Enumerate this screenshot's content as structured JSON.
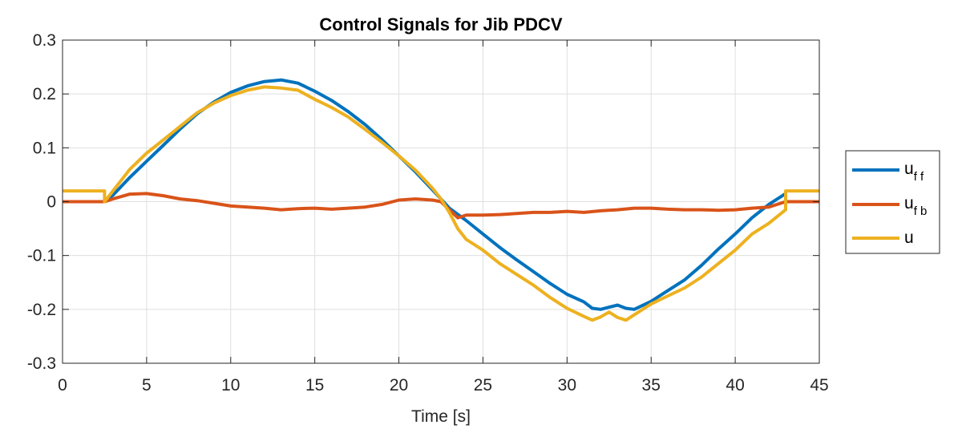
{
  "chart_data": {
    "type": "line",
    "title": "Control Signals for Jib PDCV",
    "xlabel": "Time [s]",
    "ylabel": "",
    "xlim": [
      0,
      45
    ],
    "ylim": [
      -0.3,
      0.3
    ],
    "xticks": [
      0,
      5,
      10,
      15,
      20,
      25,
      30,
      35,
      40,
      45
    ],
    "xtick_labels": [
      "0",
      "5",
      "10",
      "15",
      "20",
      "25",
      "30",
      "35",
      "40",
      "45"
    ],
    "yticks": [
      0.3,
      0.2,
      0.1,
      0,
      -0.1,
      -0.2,
      -0.3
    ],
    "ytick_labels": [
      "0.3",
      "0.2",
      "0.1",
      "0",
      "-0.1",
      "-0.2",
      "-0.3"
    ],
    "grid": true,
    "legend_position": "outside-right",
    "series": [
      {
        "name": "u_ff",
        "legend_main": "u",
        "legend_sub": "f f",
        "color": "#0072BD",
        "x": [
          0,
          2.5,
          2.5,
          3,
          4,
          5,
          6,
          7,
          8,
          9,
          10,
          11,
          12,
          13,
          14,
          15,
          16,
          17,
          18,
          19,
          20,
          21,
          22,
          22.5,
          23,
          24,
          25,
          26,
          27,
          28,
          29,
          30,
          31,
          31.5,
          32,
          32.5,
          33,
          33.5,
          34,
          35,
          36,
          37,
          38,
          39,
          40,
          41,
          42,
          43
        ],
        "y": [
          0,
          0,
          0,
          0.012,
          0.045,
          0.075,
          0.105,
          0.135,
          0.163,
          0.185,
          0.203,
          0.215,
          0.223,
          0.226,
          0.22,
          0.205,
          0.188,
          0.167,
          0.143,
          0.115,
          0.085,
          0.055,
          0.022,
          0.005,
          -0.012,
          -0.035,
          -0.06,
          -0.085,
          -0.108,
          -0.13,
          -0.152,
          -0.172,
          -0.186,
          -0.198,
          -0.2,
          -0.196,
          -0.192,
          -0.198,
          -0.2,
          -0.185,
          -0.165,
          -0.145,
          -0.118,
          -0.088,
          -0.06,
          -0.03,
          -0.005,
          0.015
        ]
      },
      {
        "name": "u_fb",
        "legend_main": "u",
        "legend_sub": "f b",
        "color": "#D95319",
        "x": [
          0,
          2.5,
          3,
          4,
          5,
          6,
          7,
          8,
          9,
          10,
          11,
          12,
          13,
          14,
          15,
          16,
          17,
          18,
          19,
          20,
          21,
          22,
          22.5,
          23,
          23.5,
          24,
          25,
          26,
          27,
          28,
          29,
          30,
          31,
          32,
          33,
          34,
          35,
          36,
          37,
          38,
          39,
          40,
          41,
          42,
          43,
          45
        ],
        "y": [
          0,
          0,
          0.005,
          0.014,
          0.015,
          0.011,
          0.005,
          0.002,
          -0.003,
          -0.008,
          -0.01,
          -0.012,
          -0.015,
          -0.013,
          -0.012,
          -0.014,
          -0.012,
          -0.01,
          -0.005,
          0.003,
          0.005,
          0.003,
          0.0,
          -0.015,
          -0.03,
          -0.025,
          -0.025,
          -0.024,
          -0.022,
          -0.02,
          -0.02,
          -0.018,
          -0.02,
          -0.017,
          -0.015,
          -0.012,
          -0.012,
          -0.014,
          -0.015,
          -0.015,
          -0.016,
          -0.015,
          -0.012,
          -0.01,
          0.0,
          0.0
        ]
      },
      {
        "name": "u",
        "legend_main": "u",
        "legend_sub": "",
        "color": "#EDB120",
        "x": [
          0,
          2.5,
          2.5,
          3,
          4,
          5,
          6,
          7,
          8,
          9,
          10,
          11,
          12,
          13,
          14,
          15,
          16,
          17,
          18,
          19,
          20,
          21,
          22,
          22.5,
          23,
          23.5,
          24,
          25,
          26,
          27,
          28,
          29,
          30,
          31,
          31.5,
          32,
          32.5,
          33,
          33.5,
          34,
          35,
          36,
          37,
          38,
          39,
          40,
          41,
          42,
          43,
          43,
          45
        ],
        "y": [
          0.02,
          0.02,
          0.0,
          0.02,
          0.06,
          0.09,
          0.115,
          0.14,
          0.165,
          0.183,
          0.197,
          0.207,
          0.213,
          0.211,
          0.207,
          0.19,
          0.175,
          0.157,
          0.134,
          0.11,
          0.085,
          0.058,
          0.025,
          0.005,
          -0.02,
          -0.05,
          -0.07,
          -0.09,
          -0.115,
          -0.135,
          -0.155,
          -0.178,
          -0.198,
          -0.213,
          -0.22,
          -0.214,
          -0.205,
          -0.215,
          -0.22,
          -0.21,
          -0.19,
          -0.175,
          -0.16,
          -0.14,
          -0.115,
          -0.09,
          -0.06,
          -0.04,
          -0.015,
          0.02,
          0.02
        ]
      }
    ]
  }
}
